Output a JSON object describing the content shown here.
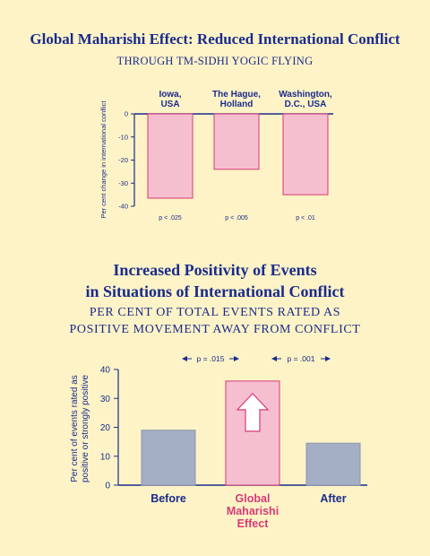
{
  "colors": {
    "background": "#fdf3c6",
    "text": "#1a2b8c",
    "pink_fill": "#f6bfcf",
    "pink_stroke": "#d63a78",
    "gray_fill": "#a4aec4",
    "highlight_label": "#d63a78"
  },
  "chart_data": [
    {
      "type": "bar",
      "title": "Global Maharishi Effect: Reduced International Conflict",
      "subtitle": "THROUGH TM-SIDHI YOGIC FLYING",
      "ylabel": "Per cent change in international conflict",
      "xlabel": "",
      "ylim": [
        -40,
        0
      ],
      "yticks": [
        0,
        -10,
        -20,
        -30,
        -40
      ],
      "grid": false,
      "categories": [
        "Iowa, USA",
        "The Hague, Holland",
        "Washington, D.C., USA"
      ],
      "category_lines": [
        [
          "Iowa,",
          "USA"
        ],
        [
          "The Hague,",
          "Holland"
        ],
        [
          "Washington,",
          "D.C., USA"
        ]
      ],
      "values": [
        -36.5,
        -24,
        -35
      ],
      "annotations": [
        "p < .025",
        "p < .005",
        "p < .01"
      ]
    },
    {
      "type": "bar",
      "title": "Increased Positivity of Events in Situations of International Conflict",
      "title_lines": [
        "Increased Positivity of Events",
        "in Situations of International Conflict"
      ],
      "subtitle": "PER CENT OF TOTAL EVENTS RATED AS POSITIVE MOVEMENT AWAY FROM CONFLICT",
      "subtitle_lines": [
        "PER CENT OF TOTAL EVENTS RATED AS",
        "POSITIVE MOVEMENT AWAY FROM CONFLICT"
      ],
      "ylabel": "Per cent of events rated as positive or strongly positive",
      "ylabel_lines": [
        "Per cent of events rated as",
        "positive or strongly positive"
      ],
      "xlabel": "",
      "ylim": [
        0,
        40
      ],
      "yticks": [
        0,
        10,
        20,
        30,
        40
      ],
      "grid": false,
      "categories": [
        "Before",
        "Global Maharishi Effect",
        "After"
      ],
      "category_lines": [
        [
          "Before"
        ],
        [
          "Global",
          "Maharishi",
          "Effect"
        ],
        [
          "After"
        ]
      ],
      "values": [
        19,
        36,
        14.5
      ],
      "highlight_index": 1,
      "annotations": [
        "p = .015",
        "p = .001"
      ]
    }
  ]
}
